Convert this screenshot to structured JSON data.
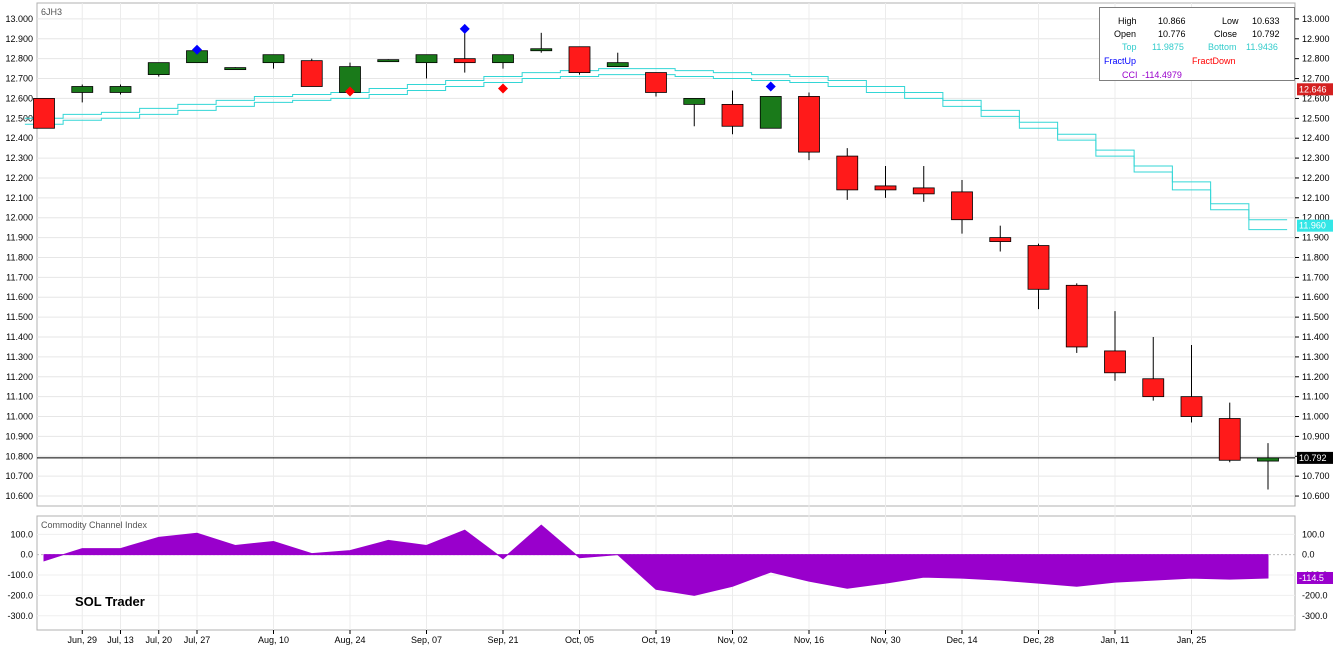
{
  "symbol": "6JH3",
  "brand": "SOL Trader",
  "colors": {
    "up": "#1a7a1a",
    "down": "#ff1a1a",
    "channel": "#33d6d6",
    "cci": "#9900cc",
    "fract_up": "#0000ff",
    "fract_down": "#ff0000",
    "price_badge": "#d42020",
    "top_badge": "#33e6e6"
  },
  "legend": {
    "high_label": "High",
    "high_value": "10.866",
    "low_label": "Low",
    "low_value": "10.633",
    "open_label": "Open",
    "open_value": "10.776",
    "close_label": "Close",
    "close_value": "10.792",
    "top_label": "Top",
    "top_value": "11.9875",
    "bottom_label": "Bottom",
    "bottom_value": "11.9436",
    "fractup_label": "FractUp",
    "fractdown_label": "FractDown",
    "cci_label": "CCI",
    "cci_value": "-114.4979"
  },
  "right_badges": {
    "last_price": "10.792",
    "marker_red": "12.646",
    "marker_cyan": "11.960",
    "cci_last": "-114.5"
  },
  "cci_title": "Commodity Channel Index",
  "chart_data": [
    {
      "type": "candlestick",
      "title": "",
      "ylim": [
        10.55,
        13.08
      ],
      "y_ticks": [
        "13.000",
        "12.900",
        "12.800",
        "12.700",
        "12.600",
        "12.500",
        "12.400",
        "12.300",
        "12.200",
        "12.100",
        "12.000",
        "11.900",
        "11.800",
        "11.700",
        "11.600",
        "11.500",
        "11.400",
        "11.300",
        "11.200",
        "11.100",
        "11.000",
        "10.900",
        "10.800",
        "10.700",
        "10.600"
      ],
      "x_ticks": [
        {
          "label": "Jun, 29",
          "i": 1
        },
        {
          "label": "Jul, 13",
          "i": 2
        },
        {
          "label": "Jul, 20",
          "i": 3
        },
        {
          "label": "Jul, 27",
          "i": 4
        },
        {
          "label": "Aug, 10",
          "i": 6
        },
        {
          "label": "Aug, 24",
          "i": 8
        },
        {
          "label": "Sep, 07",
          "i": 10
        },
        {
          "label": "Sep, 21",
          "i": 12
        },
        {
          "label": "Oct, 05",
          "i": 14
        },
        {
          "label": "Oct, 19",
          "i": 16
        },
        {
          "label": "Nov, 02",
          "i": 18
        },
        {
          "label": "Nov, 16",
          "i": 20
        },
        {
          "label": "Nov, 30",
          "i": 22
        },
        {
          "label": "Dec, 14",
          "i": 24
        },
        {
          "label": "Dec, 28",
          "i": 26
        },
        {
          "label": "Jan, 11",
          "i": 28
        },
        {
          "label": "Jan, 25",
          "i": 30
        }
      ],
      "candles": [
        {
          "o": 12.6,
          "h": 12.6,
          "l": 12.45,
          "c": 12.45
        },
        {
          "o": 12.63,
          "h": 12.67,
          "l": 12.58,
          "c": 12.66
        },
        {
          "o": 12.63,
          "h": 12.67,
          "l": 12.62,
          "c": 12.66
        },
        {
          "o": 12.72,
          "h": 12.78,
          "l": 12.71,
          "c": 12.78
        },
        {
          "o": 12.78,
          "h": 12.85,
          "l": 12.78,
          "c": 12.84
        },
        {
          "o": 12.755,
          "h": 12.757,
          "l": 12.753,
          "c": 12.755
        },
        {
          "o": 12.78,
          "h": 12.82,
          "l": 12.75,
          "c": 12.82
        },
        {
          "o": 12.79,
          "h": 12.8,
          "l": 12.66,
          "c": 12.66
        },
        {
          "o": 12.63,
          "h": 12.78,
          "l": 12.62,
          "c": 12.76
        },
        {
          "o": 12.795,
          "h": 12.797,
          "l": 12.793,
          "c": 12.795
        },
        {
          "o": 12.78,
          "h": 12.82,
          "l": 12.7,
          "c": 12.82
        },
        {
          "o": 12.8,
          "h": 12.94,
          "l": 12.73,
          "c": 12.78
        },
        {
          "o": 12.78,
          "h": 12.82,
          "l": 12.75,
          "c": 12.82
        },
        {
          "o": 12.84,
          "h": 12.93,
          "l": 12.83,
          "c": 12.85
        },
        {
          "o": 12.86,
          "h": 12.86,
          "l": 12.72,
          "c": 12.73
        },
        {
          "o": 12.76,
          "h": 12.83,
          "l": 12.76,
          "c": 12.78
        },
        {
          "o": 12.73,
          "h": 12.73,
          "l": 12.61,
          "c": 12.63
        },
        {
          "o": 12.57,
          "h": 12.6,
          "l": 12.46,
          "c": 12.6
        },
        {
          "o": 12.57,
          "h": 12.64,
          "l": 12.42,
          "c": 12.46
        },
        {
          "o": 12.45,
          "h": 12.61,
          "l": 12.45,
          "c": 12.61
        },
        {
          "o": 12.61,
          "h": 12.63,
          "l": 12.29,
          "c": 12.33
        },
        {
          "o": 12.31,
          "h": 12.35,
          "l": 12.09,
          "c": 12.14
        },
        {
          "o": 12.16,
          "h": 12.26,
          "l": 12.1,
          "c": 12.14
        },
        {
          "o": 12.15,
          "h": 12.26,
          "l": 12.08,
          "c": 12.12
        },
        {
          "o": 12.13,
          "h": 12.19,
          "l": 11.92,
          "c": 11.99
        },
        {
          "o": 11.9,
          "h": 11.96,
          "l": 11.83,
          "c": 11.88
        },
        {
          "o": 11.86,
          "h": 11.87,
          "l": 11.54,
          "c": 11.64
        },
        {
          "o": 11.66,
          "h": 11.67,
          "l": 11.32,
          "c": 11.35
        },
        {
          "o": 11.33,
          "h": 11.53,
          "l": 11.18,
          "c": 11.22
        },
        {
          "o": 11.19,
          "h": 11.4,
          "l": 11.08,
          "c": 11.1
        },
        {
          "o": 11.1,
          "h": 11.36,
          "l": 10.97,
          "c": 11.0
        },
        {
          "o": 10.99,
          "h": 11.07,
          "l": 10.77,
          "c": 10.78
        },
        {
          "o": 10.776,
          "h": 10.866,
          "l": 10.633,
          "c": 10.792
        }
      ],
      "channel_top": [
        12.5,
        12.52,
        12.53,
        12.55,
        12.57,
        12.59,
        12.61,
        12.62,
        12.63,
        12.65,
        12.67,
        12.69,
        12.71,
        12.73,
        12.74,
        12.75,
        12.75,
        12.74,
        12.73,
        12.72,
        12.71,
        12.69,
        12.66,
        12.63,
        12.59,
        12.54,
        12.48,
        12.42,
        12.34,
        12.26,
        12.18,
        12.07,
        11.99
      ],
      "channel_bottom": [
        12.47,
        12.49,
        12.5,
        12.52,
        12.54,
        12.56,
        12.58,
        12.59,
        12.6,
        12.62,
        12.64,
        12.66,
        12.68,
        12.7,
        12.71,
        12.72,
        12.72,
        12.71,
        12.7,
        12.69,
        12.68,
        12.66,
        12.63,
        12.6,
        12.56,
        12.51,
        12.45,
        12.39,
        12.31,
        12.23,
        12.14,
        12.04,
        11.94
      ],
      "last_price_line": 10.792,
      "fractals_up": [
        {
          "i": 4,
          "price": 12.845
        },
        {
          "i": 11,
          "price": 12.95
        },
        {
          "i": 19,
          "price": 12.66
        }
      ],
      "fractals_down": [
        {
          "i": 8,
          "price": 12.635
        },
        {
          "i": 12,
          "price": 12.65
        }
      ]
    },
    {
      "type": "area",
      "title": "Commodity Channel Index",
      "ylim": [
        -370,
        190
      ],
      "y_ticks": [
        "100.0",
        "0.0",
        "-100.0",
        "-200.0",
        "-300.0"
      ],
      "values": [
        -30,
        30,
        30,
        85,
        105,
        45,
        65,
        5,
        20,
        70,
        45,
        120,
        -20,
        145,
        -15,
        0,
        -170,
        -200,
        -155,
        -85,
        -130,
        -165,
        -140,
        -110,
        -115,
        -125,
        -140,
        -155,
        -135,
        -125,
        -115,
        -120,
        -114.5
      ]
    }
  ]
}
